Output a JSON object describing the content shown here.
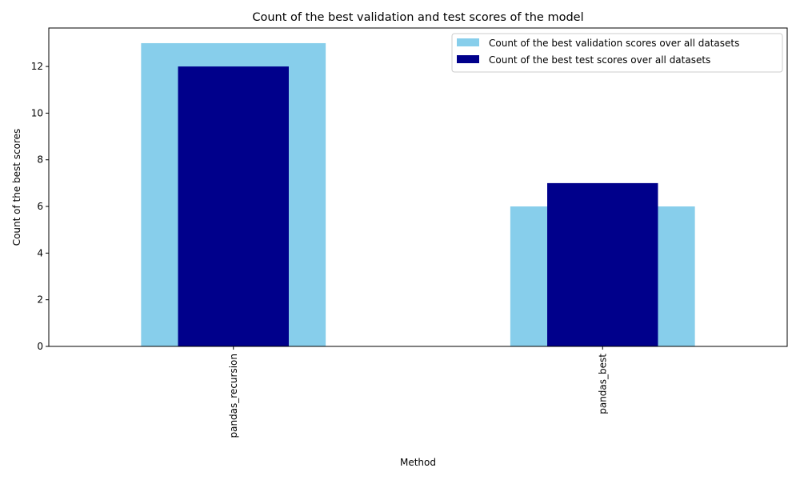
{
  "chart_data": {
    "type": "bar",
    "title": "Count of the best validation and test scores of the model",
    "xlabel": "Method",
    "ylabel": "Count of the best scores",
    "categories": [
      "pandas_recursion",
      "pandas_best"
    ],
    "series": [
      {
        "name": "Count of the best validation scores over all datasets",
        "values": [
          13,
          6
        ],
        "color": "#87ceeb"
      },
      {
        "name": "Count of the best test scores over all datasets",
        "values": [
          12,
          7
        ],
        "color": "#00008b"
      }
    ],
    "yticks": [
      0,
      2,
      4,
      6,
      8,
      10,
      12
    ],
    "ylim": [
      0,
      13.65
    ],
    "grid": false,
    "legend_position": "top-right"
  }
}
